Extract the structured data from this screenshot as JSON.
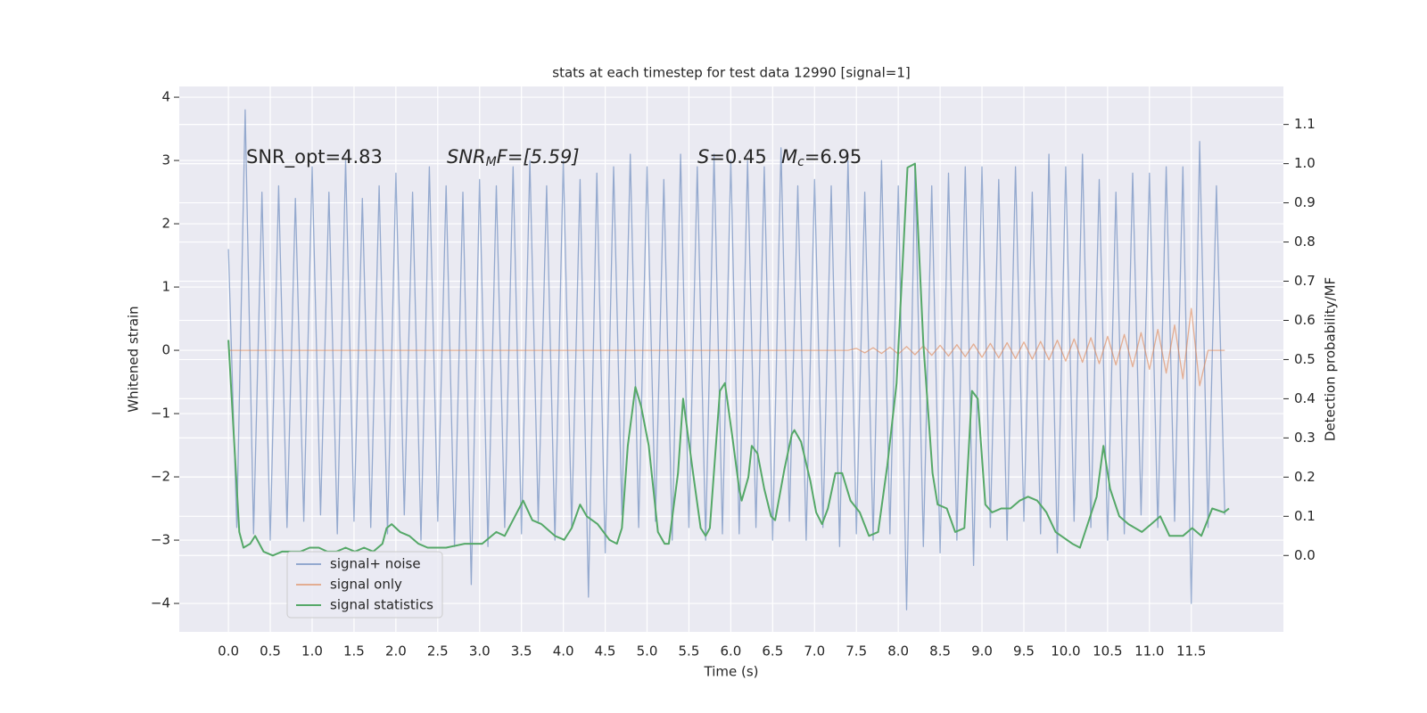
{
  "chart_data": {
    "type": "line",
    "title": "stats at each timestep for test data 12990 [signal=1]",
    "xlabel": "Time (s)",
    "ylabel": "Whitened strain",
    "y2label": "Detection probability/MF",
    "annotations": [
      [
        "SNR_opt=4.83"
      ],
      [
        "SNR",
        "M",
        "F=[5.59]"
      ],
      [
        "S",
        "=0.45"
      ],
      [
        "M",
        "c",
        "=6.95"
      ]
    ],
    "xlim": [
      -0.587,
      12.6
    ],
    "ylim": [
      -4.45,
      4.17
    ],
    "y2lim": [
      -0.195,
      1.197
    ],
    "grid": true,
    "legend": "lower left",
    "xticks": [
      {
        "value": 0,
        "label": "0.0"
      },
      {
        "value": 0.5,
        "label": "0.5"
      },
      {
        "value": 1,
        "label": "1.0"
      },
      {
        "value": 1.5,
        "label": "1.5"
      },
      {
        "value": 2,
        "label": "2.0"
      },
      {
        "value": 2.5,
        "label": "2.5"
      },
      {
        "value": 3,
        "label": "3.0"
      },
      {
        "value": 3.5,
        "label": "3.5"
      },
      {
        "value": 4,
        "label": "4.0"
      },
      {
        "value": 4.5,
        "label": "4.5"
      },
      {
        "value": 5,
        "label": "5.0"
      },
      {
        "value": 5.5,
        "label": "5.5"
      },
      {
        "value": 6,
        "label": "6.0"
      },
      {
        "value": 6.5,
        "label": "6.5"
      },
      {
        "value": 7,
        "label": "7.0"
      },
      {
        "value": 7.5,
        "label": "7.5"
      },
      {
        "value": 8,
        "label": "8.0"
      },
      {
        "value": 8.5,
        "label": "8.5"
      },
      {
        "value": 9,
        "label": "9.0"
      },
      {
        "value": 9.5,
        "label": "9.5"
      },
      {
        "value": 10,
        "label": "10.0"
      },
      {
        "value": 10.5,
        "label": "10.5"
      },
      {
        "value": 11,
        "label": "11.0"
      },
      {
        "value": 11.5,
        "label": "11.5"
      }
    ],
    "yticks": [
      {
        "value": -4,
        "label": "−4"
      },
      {
        "value": -3,
        "label": "−3"
      },
      {
        "value": -2,
        "label": "−2"
      },
      {
        "value": -1,
        "label": "−1"
      },
      0,
      1,
      2,
      3,
      4
    ],
    "y2ticks": [
      {
        "value": 0,
        "label": "0.0"
      },
      {
        "value": 0.1,
        "label": "0.1"
      },
      {
        "value": 0.2,
        "label": "0.2"
      },
      {
        "value": 0.3,
        "label": "0.3"
      },
      {
        "value": 0.4,
        "label": "0.4"
      },
      {
        "value": 0.5,
        "label": "0.5"
      },
      {
        "value": 0.6,
        "label": "0.6"
      },
      {
        "value": 0.7,
        "label": "0.7"
      },
      {
        "value": 0.8,
        "label": "0.8"
      },
      {
        "value": 0.9,
        "label": "0.9"
      },
      {
        "value": 1,
        "label": "1.0"
      },
      {
        "value": 1.1,
        "label": "1.1"
      }
    ],
    "x": [
      0,
      0.1,
      0.2,
      0.3,
      0.4,
      0.5,
      0.6,
      0.7,
      0.8,
      0.9,
      1,
      1.1,
      1.2,
      1.3,
      1.4,
      1.5,
      1.6,
      1.7,
      1.8,
      1.9,
      2,
      2.1,
      2.2,
      2.3,
      2.4,
      2.5,
      2.6,
      2.7,
      2.8,
      2.9,
      3,
      3.1,
      3.2,
      3.3,
      3.4,
      3.5,
      3.6,
      3.7,
      3.8,
      3.9,
      4,
      4.1,
      4.2,
      4.3,
      4.4,
      4.5,
      4.6,
      4.7,
      4.8,
      4.9,
      5,
      5.1,
      5.2,
      5.3,
      5.4,
      5.5,
      5.6,
      5.7,
      5.8,
      5.9,
      6,
      6.1,
      6.2,
      6.3,
      6.4,
      6.5,
      6.6,
      6.7,
      6.8,
      6.9,
      7,
      7.1,
      7.2,
      7.3,
      7.4,
      7.5,
      7.6,
      7.7,
      7.8,
      7.9,
      8,
      8.1,
      8.2,
      8.3,
      8.4,
      8.5,
      8.6,
      8.7,
      8.8,
      8.9,
      9,
      9.1,
      9.2,
      9.3,
      9.4,
      9.5,
      9.6,
      9.7,
      9.8,
      9.9,
      10,
      10.1,
      10.2,
      10.3,
      10.4,
      10.5,
      10.6,
      10.7,
      10.8,
      10.9,
      11,
      11.1,
      11.2,
      11.3,
      11.4,
      11.5,
      11.6,
      11.7,
      11.8,
      11.9
    ],
    "series": [
      {
        "name": "signal+ noise",
        "color": "#4c72b0",
        "values": [
          1.6,
          -2.8,
          3.8,
          -2.9,
          2.5,
          -3.0,
          2.6,
          -2.8,
          2.4,
          -2.7,
          2.9,
          -2.6,
          2.5,
          -2.9,
          3.0,
          -2.7,
          2.4,
          -2.8,
          2.6,
          -2.9,
          2.8,
          -2.6,
          2.5,
          -3.0,
          2.9,
          -2.7,
          2.6,
          -3.1,
          2.5,
          -3.7,
          2.7,
          -3.1,
          2.6,
          -2.8,
          2.9,
          -2.9,
          3.0,
          -2.7,
          2.6,
          -3.0,
          3.0,
          -2.8,
          2.7,
          -3.9,
          2.8,
          -3.2,
          2.9,
          -2.6,
          3.1,
          -2.8,
          2.9,
          -2.7,
          2.7,
          -3.0,
          3.1,
          -2.8,
          2.9,
          -3.0,
          3.1,
          -2.9,
          3.0,
          -2.9,
          3.0,
          -2.8,
          2.9,
          -3.0,
          3.2,
          -2.7,
          2.6,
          -3.0,
          2.7,
          -2.8,
          2.6,
          -3.1,
          3.0,
          -2.9,
          2.5,
          -3.0,
          3.0,
          -2.9,
          2.6,
          -4.1,
          2.9,
          -3.1,
          2.6,
          -3.2,
          2.8,
          -3.0,
          2.9,
          -3.4,
          2.9,
          -2.8,
          2.7,
          -3.0,
          2.9,
          -2.7,
          2.5,
          -2.9,
          3.1,
          -3.2,
          2.9,
          -2.7,
          3.1,
          -2.8,
          2.7,
          -3.0,
          2.5,
          -2.9,
          2.8,
          -2.6,
          2.8,
          -2.8,
          2.9,
          -2.7,
          2.9,
          -4.0,
          3.3,
          -2.8,
          2.6,
          -2.6
        ]
      },
      {
        "name": "signal only",
        "color": "#dd8452",
        "values": [
          0,
          0,
          0,
          0,
          0,
          0,
          0,
          0,
          0,
          0,
          0,
          0,
          0,
          0,
          0,
          0,
          0,
          0,
          0,
          0,
          0,
          0,
          0,
          0,
          0,
          0,
          0,
          0,
          0,
          0,
          0,
          0,
          0,
          0,
          0,
          0,
          0,
          0,
          0,
          0,
          0,
          0,
          0,
          0,
          0,
          0,
          0,
          0,
          0,
          0,
          0,
          0,
          0,
          0,
          0,
          0,
          0,
          0,
          0,
          0,
          0,
          0,
          0,
          0,
          0,
          0,
          0,
          0,
          0,
          0,
          0,
          0,
          0,
          0,
          0,
          0.03,
          -0.04,
          0.04,
          -0.05,
          0.05,
          -0.06,
          0.06,
          -0.07,
          0.07,
          -0.08,
          0.08,
          -0.09,
          0.09,
          -0.1,
          0.1,
          -0.11,
          0.11,
          -0.12,
          0.12,
          -0.13,
          0.13,
          -0.14,
          0.14,
          -0.15,
          0.16,
          -0.17,
          0.18,
          -0.19,
          0.2,
          -0.21,
          0.22,
          -0.23,
          0.25,
          -0.26,
          0.28,
          -0.3,
          0.33,
          -0.36,
          0.4,
          -0.45,
          0.66,
          -0.56,
          0,
          0,
          0
        ]
      },
      {
        "name": "signal statistics",
        "color": "#55a868",
        "axis": "y2",
        "x": [
          0,
          0.13,
          0.18,
          0.26,
          0.32,
          0.42,
          0.53,
          0.64,
          0.75,
          0.86,
          0.97,
          1.08,
          1.18,
          1.29,
          1.4,
          1.51,
          1.62,
          1.73,
          1.84,
          1.89,
          1.95,
          2.05,
          2.16,
          2.27,
          2.38,
          2.49,
          2.6,
          2.82,
          2.92,
          3.03,
          3.2,
          3.3,
          3.52,
          3.63,
          3.74,
          3.9,
          4.01,
          4.1,
          4.2,
          4.28,
          4.41,
          4.55,
          4.64,
          4.7,
          4.77,
          4.86,
          4.93,
          5.02,
          5.13,
          5.21,
          5.26,
          5.37,
          5.43,
          5.55,
          5.64,
          5.7,
          5.75,
          5.87,
          5.93,
          6.02,
          6.1,
          6.13,
          6.21,
          6.25,
          6.32,
          6.4,
          6.48,
          6.53,
          6.64,
          6.73,
          6.76,
          6.84,
          6.95,
          7.02,
          7.09,
          7.16,
          7.25,
          7.33,
          7.43,
          7.54,
          7.65,
          7.76,
          7.87,
          7.98,
          8.11,
          8.2,
          8.3,
          8.41,
          8.47,
          8.58,
          8.68,
          8.79,
          8.88,
          8.95,
          9.04,
          9.12,
          9.23,
          9.34,
          9.45,
          9.55,
          9.66,
          9.77,
          9.88,
          10.08,
          10.17,
          10.37,
          10.45,
          10.53,
          10.64,
          10.75,
          10.91,
          11.02,
          11.13,
          11.24,
          11.4,
          11.51,
          11.62,
          11.75,
          11.89,
          11.95
        ],
        "values": [
          0.55,
          0.06,
          0.02,
          0.03,
          0.05,
          0.01,
          0,
          0.01,
          0.01,
          0.01,
          0.02,
          0.02,
          0.01,
          0.01,
          0.02,
          0.01,
          0.02,
          0.01,
          0.03,
          0.07,
          0.08,
          0.06,
          0.05,
          0.03,
          0.02,
          0.02,
          0.02,
          0.03,
          0.03,
          0.03,
          0.06,
          0.05,
          0.14,
          0.09,
          0.08,
          0.05,
          0.04,
          0.07,
          0.13,
          0.1,
          0.08,
          0.04,
          0.03,
          0.07,
          0.28,
          0.43,
          0.38,
          0.28,
          0.06,
          0.03,
          0.03,
          0.21,
          0.4,
          0.21,
          0.07,
          0.05,
          0.07,
          0.42,
          0.44,
          0.3,
          0.17,
          0.14,
          0.2,
          0.28,
          0.26,
          0.17,
          0.1,
          0.09,
          0.22,
          0.31,
          0.32,
          0.29,
          0.19,
          0.11,
          0.08,
          0.12,
          0.21,
          0.21,
          0.14,
          0.11,
          0.05,
          0.06,
          0.23,
          0.44,
          0.99,
          1.0,
          0.54,
          0.21,
          0.13,
          0.12,
          0.06,
          0.07,
          0.42,
          0.4,
          0.13,
          0.11,
          0.12,
          0.12,
          0.14,
          0.15,
          0.14,
          0.11,
          0.06,
          0.03,
          0.02,
          0.15,
          0.28,
          0.17,
          0.1,
          0.08,
          0.06,
          0.08,
          0.1,
          0.05,
          0.05,
          0.07,
          0.05,
          0.12,
          0.11,
          0.12
        ]
      }
    ]
  }
}
